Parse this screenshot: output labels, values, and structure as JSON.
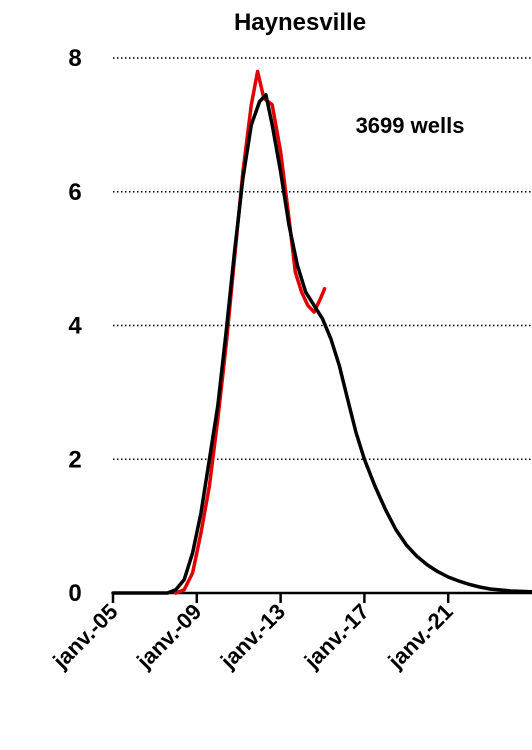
{
  "chart_data": {
    "type": "line",
    "title": "Haynesville",
    "annotation": "3699 wells",
    "xlabel": "",
    "ylabel": "",
    "ylim": [
      0,
      8
    ],
    "xlim": [
      2005.0,
      2025.0
    ],
    "y_ticks": [
      "0",
      "2",
      "4",
      "6",
      "8"
    ],
    "x_ticks": [
      {
        "label": "janv.-05",
        "value": 2005.0
      },
      {
        "label": "janv.-09",
        "value": 2009.0
      },
      {
        "label": "janv.-13",
        "value": 2013.0
      },
      {
        "label": "janv.-17",
        "value": 2017.0
      },
      {
        "label": "janv.-21",
        "value": 2021.0
      }
    ],
    "grid": "horizontal dotted",
    "legend": "none",
    "series": [
      {
        "color": "#e00000",
        "points": [
          [
            2008.0,
            0.0
          ],
          [
            2008.4,
            0.05
          ],
          [
            2008.8,
            0.3
          ],
          [
            2009.2,
            0.9
          ],
          [
            2009.6,
            1.6
          ],
          [
            2010.0,
            2.6
          ],
          [
            2010.4,
            3.7
          ],
          [
            2010.8,
            5.0
          ],
          [
            2011.2,
            6.3
          ],
          [
            2011.6,
            7.3
          ],
          [
            2011.9,
            7.8
          ],
          [
            2012.2,
            7.4
          ],
          [
            2012.6,
            7.3
          ],
          [
            2013.0,
            6.6
          ],
          [
            2013.4,
            5.6
          ],
          [
            2013.7,
            4.8
          ],
          [
            2014.0,
            4.5
          ],
          [
            2014.3,
            4.3
          ],
          [
            2014.6,
            4.2
          ],
          [
            2014.9,
            4.4
          ],
          [
            2015.1,
            4.55
          ]
        ]
      },
      {
        "color": "#000000",
        "points": [
          [
            2005.0,
            0.0
          ],
          [
            2007.6,
            0.0
          ],
          [
            2008.0,
            0.05
          ],
          [
            2008.4,
            0.2
          ],
          [
            2008.8,
            0.6
          ],
          [
            2009.2,
            1.2
          ],
          [
            2009.6,
            2.0
          ],
          [
            2010.0,
            2.8
          ],
          [
            2010.4,
            3.9
          ],
          [
            2010.8,
            5.1
          ],
          [
            2011.2,
            6.2
          ],
          [
            2011.6,
            7.0
          ],
          [
            2012.0,
            7.35
          ],
          [
            2012.3,
            7.45
          ],
          [
            2012.6,
            7.0
          ],
          [
            2013.0,
            6.3
          ],
          [
            2013.4,
            5.5
          ],
          [
            2013.8,
            4.9
          ],
          [
            2014.2,
            4.5
          ],
          [
            2014.6,
            4.3
          ],
          [
            2015.0,
            4.1
          ],
          [
            2015.4,
            3.8
          ],
          [
            2015.8,
            3.4
          ],
          [
            2016.2,
            2.9
          ],
          [
            2016.6,
            2.4
          ],
          [
            2017.0,
            2.0
          ],
          [
            2017.5,
            1.6
          ],
          [
            2018.0,
            1.25
          ],
          [
            2018.5,
            0.95
          ],
          [
            2019.0,
            0.72
          ],
          [
            2019.5,
            0.55
          ],
          [
            2020.0,
            0.42
          ],
          [
            2020.5,
            0.32
          ],
          [
            2021.0,
            0.24
          ],
          [
            2021.5,
            0.18
          ],
          [
            2022.0,
            0.13
          ],
          [
            2022.5,
            0.09
          ],
          [
            2023.0,
            0.06
          ],
          [
            2024.0,
            0.03
          ],
          [
            2025.0,
            0.02
          ]
        ]
      }
    ]
  }
}
